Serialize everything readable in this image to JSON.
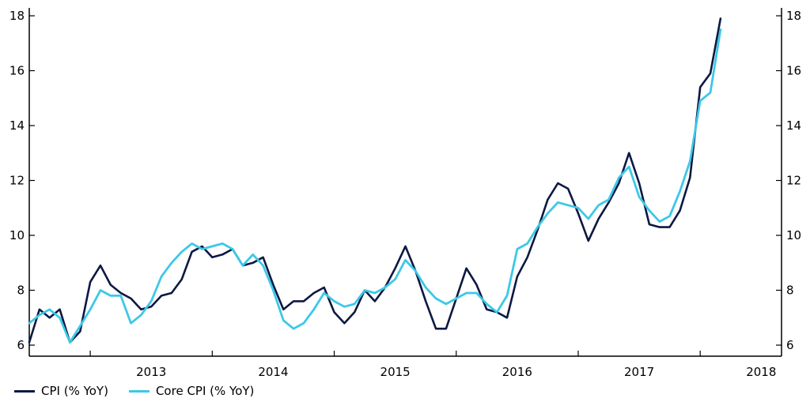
{
  "chart_data": {
    "type": "line",
    "title": "",
    "xlabel": "",
    "ylabel": "",
    "ylim": [
      6,
      18
    ],
    "yticks": [
      "6",
      "8",
      "10",
      "12",
      "14",
      "16",
      "18"
    ],
    "year_labels": [
      "2013",
      "2014",
      "2015",
      "2016",
      "2017",
      "2018"
    ],
    "x_start": "2012-07",
    "x_end": "2018-09",
    "grid": false,
    "legend_position": "bottom-left",
    "series": [
      {
        "name": "CPI (% YoY)",
        "color": "#0d1842",
        "values": [
          [
            "2012-07",
            6.1
          ],
          [
            "2012-08",
            7.3
          ],
          [
            "2012-09",
            7.0
          ],
          [
            "2012-10",
            7.3
          ],
          [
            "2012-11",
            6.1
          ],
          [
            "2012-12",
            6.5
          ],
          [
            "2013-01",
            8.3
          ],
          [
            "2013-02",
            8.9
          ],
          [
            "2013-03",
            8.2
          ],
          [
            "2013-04",
            7.9
          ],
          [
            "2013-05",
            7.7
          ],
          [
            "2013-06",
            7.3
          ],
          [
            "2013-07",
            7.4
          ],
          [
            "2013-08",
            7.8
          ],
          [
            "2013-09",
            7.9
          ],
          [
            "2013-10",
            8.4
          ],
          [
            "2013-11",
            9.4
          ],
          [
            "2013-12",
            9.6
          ],
          [
            "2014-01",
            9.2
          ],
          [
            "2014-02",
            9.3
          ],
          [
            "2014-03",
            9.5
          ],
          [
            "2014-04",
            8.9
          ],
          [
            "2014-05",
            9.0
          ],
          [
            "2014-06",
            9.2
          ],
          [
            "2014-07",
            8.2
          ],
          [
            "2014-08",
            7.3
          ],
          [
            "2014-09",
            7.6
          ],
          [
            "2014-10",
            7.6
          ],
          [
            "2014-11",
            7.9
          ],
          [
            "2014-12",
            8.1
          ],
          [
            "2015-01",
            7.2
          ],
          [
            "2015-02",
            6.8
          ],
          [
            "2015-03",
            7.2
          ],
          [
            "2015-04",
            8.0
          ],
          [
            "2015-05",
            7.6
          ],
          [
            "2015-06",
            8.1
          ],
          [
            "2015-07",
            8.8
          ],
          [
            "2015-08",
            9.6
          ],
          [
            "2015-09",
            8.7
          ],
          [
            "2015-10",
            7.6
          ],
          [
            "2015-11",
            6.6
          ],
          [
            "2015-12",
            6.6
          ],
          [
            "2016-01",
            7.7
          ],
          [
            "2016-02",
            8.8
          ],
          [
            "2016-03",
            8.2
          ],
          [
            "2016-04",
            7.3
          ],
          [
            "2016-05",
            7.2
          ],
          [
            "2016-06",
            7.0
          ],
          [
            "2016-07",
            8.5
          ],
          [
            "2016-08",
            9.2
          ],
          [
            "2016-09",
            10.2
          ],
          [
            "2016-10",
            11.3
          ],
          [
            "2016-11",
            11.9
          ],
          [
            "2016-12",
            11.7
          ],
          [
            "2017-01",
            10.8
          ],
          [
            "2017-02",
            9.8
          ],
          [
            "2017-03",
            10.6
          ],
          [
            "2017-04",
            11.2
          ],
          [
            "2017-05",
            11.9
          ],
          [
            "2017-06",
            13.0
          ],
          [
            "2017-07",
            11.9
          ],
          [
            "2017-08",
            10.4
          ],
          [
            "2017-09",
            10.3
          ],
          [
            "2017-10",
            10.3
          ],
          [
            "2017-11",
            10.9
          ],
          [
            "2017-12",
            12.1
          ],
          [
            "2018-01",
            15.4
          ],
          [
            "2018-02",
            15.9
          ],
          [
            "2018-03",
            17.9
          ]
        ]
      },
      {
        "name": "Core CPI (% YoY)",
        "color": "#3cc8e8",
        "values": [
          [
            "2012-07",
            6.8
          ],
          [
            "2012-08",
            7.1
          ],
          [
            "2012-09",
            7.3
          ],
          [
            "2012-10",
            7.0
          ],
          [
            "2012-11",
            6.1
          ],
          [
            "2012-12",
            6.7
          ],
          [
            "2013-01",
            7.3
          ],
          [
            "2013-02",
            8.0
          ],
          [
            "2013-03",
            7.8
          ],
          [
            "2013-04",
            7.8
          ],
          [
            "2013-05",
            6.8
          ],
          [
            "2013-06",
            7.1
          ],
          [
            "2013-07",
            7.6
          ],
          [
            "2013-08",
            8.5
          ],
          [
            "2013-09",
            9.0
          ],
          [
            "2013-10",
            9.4
          ],
          [
            "2013-11",
            9.7
          ],
          [
            "2013-12",
            9.5
          ],
          [
            "2014-01",
            9.6
          ],
          [
            "2014-02",
            9.7
          ],
          [
            "2014-03",
            9.5
          ],
          [
            "2014-04",
            8.9
          ],
          [
            "2014-05",
            9.3
          ],
          [
            "2014-06",
            8.9
          ],
          [
            "2014-07",
            8.0
          ],
          [
            "2014-08",
            6.9
          ],
          [
            "2014-09",
            6.6
          ],
          [
            "2014-10",
            6.8
          ],
          [
            "2014-11",
            7.3
          ],
          [
            "2014-12",
            7.9
          ],
          [
            "2015-01",
            7.6
          ],
          [
            "2015-02",
            7.4
          ],
          [
            "2015-03",
            7.5
          ],
          [
            "2015-04",
            8.0
          ],
          [
            "2015-05",
            7.9
          ],
          [
            "2015-06",
            8.1
          ],
          [
            "2015-07",
            8.4
          ],
          [
            "2015-08",
            9.1
          ],
          [
            "2015-09",
            8.7
          ],
          [
            "2015-10",
            8.1
          ],
          [
            "2015-11",
            7.7
          ],
          [
            "2015-12",
            7.5
          ],
          [
            "2016-01",
            7.7
          ],
          [
            "2016-02",
            7.9
          ],
          [
            "2016-03",
            7.9
          ],
          [
            "2016-04",
            7.5
          ],
          [
            "2016-05",
            7.2
          ],
          [
            "2016-06",
            7.8
          ],
          [
            "2016-07",
            9.5
          ],
          [
            "2016-08",
            9.7
          ],
          [
            "2016-09",
            10.3
          ],
          [
            "2016-10",
            10.8
          ],
          [
            "2016-11",
            11.2
          ],
          [
            "2016-12",
            11.1
          ],
          [
            "2017-01",
            11.0
          ],
          [
            "2017-02",
            10.6
          ],
          [
            "2017-03",
            11.1
          ],
          [
            "2017-04",
            11.3
          ],
          [
            "2017-05",
            12.1
          ],
          [
            "2017-06",
            12.5
          ],
          [
            "2017-07",
            11.4
          ],
          [
            "2017-08",
            10.9
          ],
          [
            "2017-09",
            10.5
          ],
          [
            "2017-10",
            10.7
          ],
          [
            "2017-11",
            11.6
          ],
          [
            "2017-12",
            12.7
          ],
          [
            "2018-01",
            14.9
          ],
          [
            "2018-02",
            15.2
          ],
          [
            "2018-03",
            17.5
          ]
        ]
      }
    ]
  }
}
